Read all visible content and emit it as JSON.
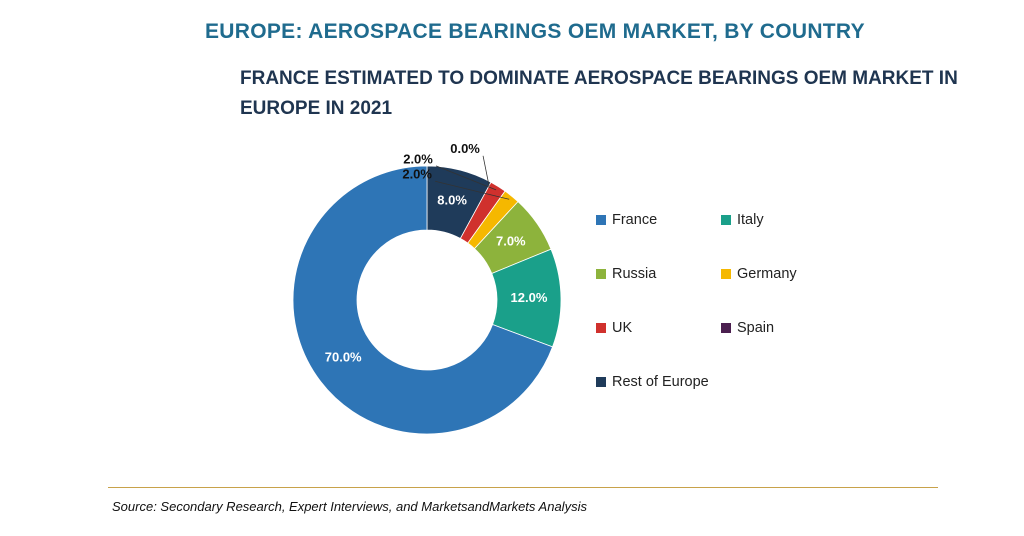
{
  "header": {
    "title": "EUROPE: AEROSPACE BEARINGS OEM MARKET, BY COUNTRY",
    "subtitle_line1": "FRANCE ESTIMATED TO DOMINATE AEROSPACE BEARINGS OEM MARKET IN",
    "subtitle_line2": "EUROPE IN 2021"
  },
  "chart_data": {
    "type": "pie",
    "variant": "donut",
    "categories": [
      "France",
      "Italy",
      "Russia",
      "Germany",
      "UK",
      "Spain",
      "Rest of Europe"
    ],
    "values": [
      70.0,
      12.0,
      7.0,
      2.0,
      2.0,
      0.0,
      8.0
    ],
    "labels": [
      "70.0%",
      "12.0%",
      "7.0%",
      "2.0%",
      "2.0%",
      "0.0%",
      "8.0%"
    ],
    "colors": [
      "#2e75b6",
      "#1aa08a",
      "#8db33c",
      "#f5b800",
      "#d0312d",
      "#4b1f4f",
      "#1f3b5a"
    ],
    "legend_position": "right"
  },
  "footer": {
    "source": "Source: Secondary Research, Expert Interviews, and MarketsandMarkets Analysis"
  }
}
